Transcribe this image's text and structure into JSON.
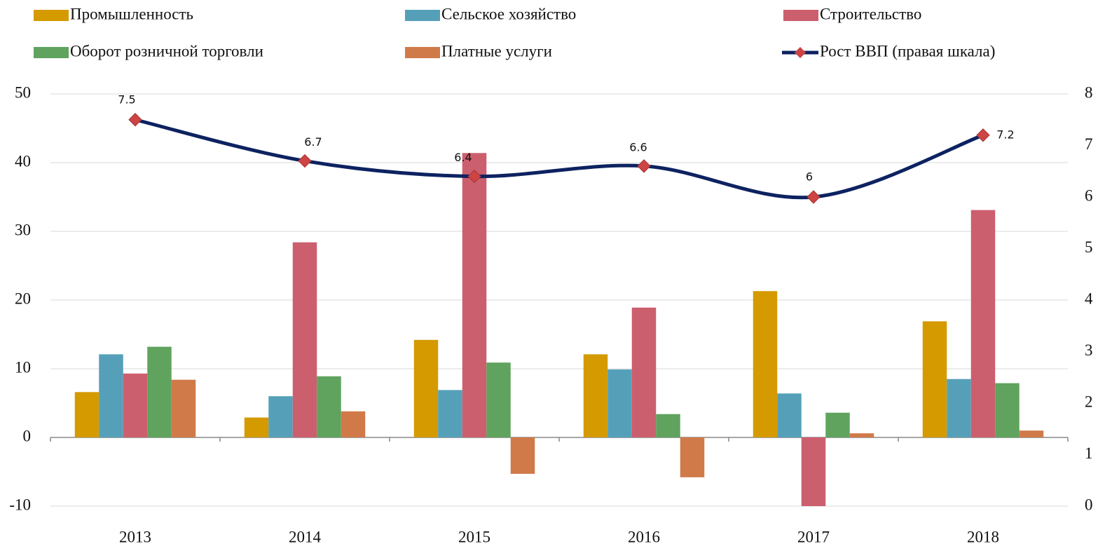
{
  "chart_data": {
    "type": "bar",
    "categories": [
      "2013",
      "2014",
      "2015",
      "2016",
      "2017",
      "2018"
    ],
    "series": [
      {
        "name": "Промышленность",
        "color": "#d49a00",
        "values": [
          6.6,
          2.9,
          14.2,
          12.1,
          21.3,
          16.9
        ]
      },
      {
        "name": "Сельское хозяйство",
        "color": "#55a0b8",
        "values": [
          12.1,
          6.0,
          6.9,
          9.9,
          6.4,
          8.5
        ]
      },
      {
        "name": "Строительство",
        "color": "#cc5f6e",
        "values": [
          9.3,
          28.4,
          41.4,
          18.9,
          -10,
          33.1
        ]
      },
      {
        "name": "Оборот розничной торговли",
        "color": "#5fa35f",
        "values": [
          13.2,
          8.9,
          10.9,
          3.4,
          3.6,
          7.9
        ]
      },
      {
        "name": "Платные услуги",
        "color": "#d07a4a",
        "values": [
          8.4,
          3.8,
          -5.3,
          -5.8,
          0.6,
          1.0
        ]
      },
      {
        "name": "Рост ВВП (правая шкала)",
        "color": "#0d2260",
        "marker_color": "#cc4444",
        "type": "line",
        "axis": "y2",
        "values": [
          7.5,
          6.7,
          6.4,
          6.6,
          6,
          7.2
        ]
      }
    ],
    "ylim": [
      -10,
      50
    ],
    "yticks": [
      -10,
      0,
      10,
      20,
      30,
      40,
      50
    ],
    "y2lim": [
      0,
      8
    ],
    "y2ticks": [
      0,
      1,
      2,
      3,
      4,
      5,
      6,
      7,
      8
    ],
    "grid": true,
    "legend": "top"
  }
}
